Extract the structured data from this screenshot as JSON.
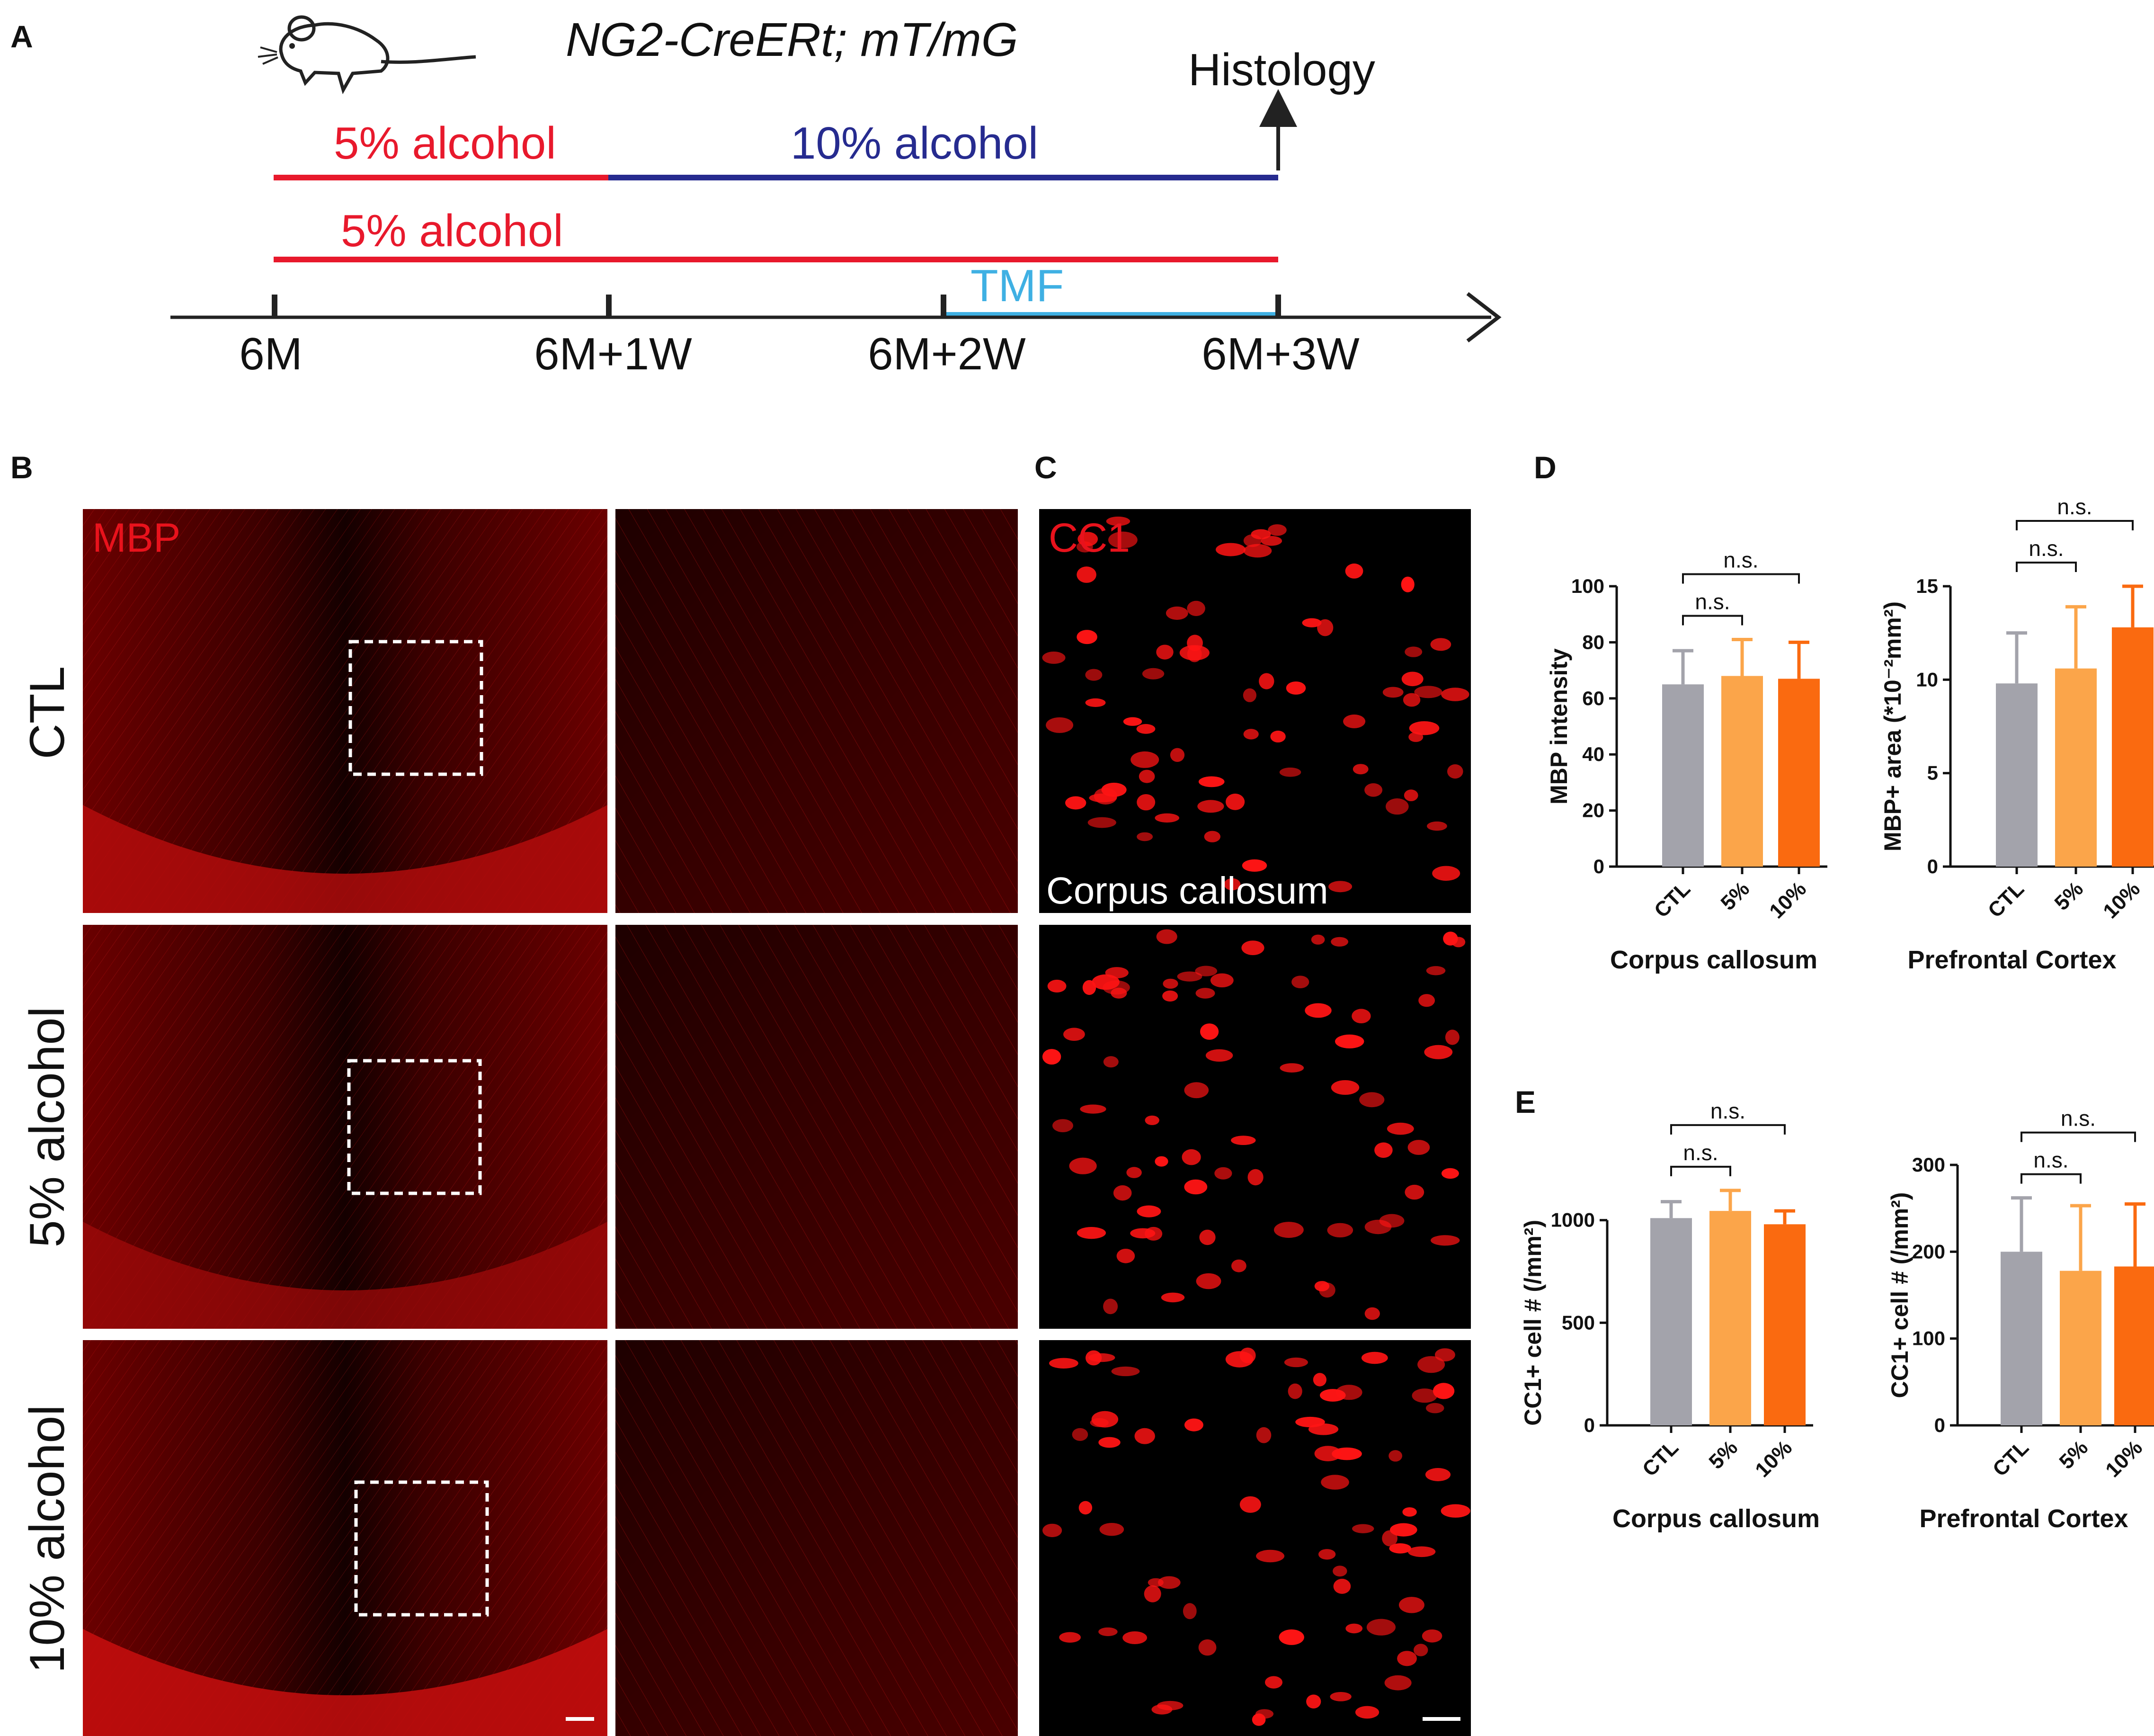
{
  "panel_letters": {
    "a": "A",
    "b": "B",
    "c": "C",
    "d": "D",
    "e": "E"
  },
  "timeline": {
    "strain": "NG2-CreERt; mT/mG",
    "endpoint": "Histology",
    "rows": [
      {
        "segments": [
          {
            "label": "5% alcohol",
            "color": "#e8192c"
          },
          {
            "label": "10% alcohol",
            "color": "#262b8f"
          }
        ]
      },
      {
        "segments": [
          {
            "label": "5% alcohol",
            "color": "#e8192c"
          }
        ]
      }
    ],
    "tmf": {
      "label": "TMF",
      "color": "#3fb0e3"
    },
    "ticks": [
      "6M",
      "6M+1W",
      "6M+2W",
      "6M+3W"
    ]
  },
  "micrographs": {
    "stain_b": "MBP",
    "stain_c": "CC1",
    "region_c": "Corpus callosum",
    "conditions": [
      "CTL",
      "5% alcohol",
      "10% alcohol"
    ],
    "colors": {
      "stain_label": "#e8121c",
      "background": "#000000",
      "signal": "#ff1414"
    }
  },
  "colors": {
    "CTL": "#a3a3ab",
    "5%": "#fba54a",
    "10%": "#fa6a10"
  },
  "chart_data": [
    {
      "panel": "D",
      "type": "bar",
      "title": "Corpus callosum",
      "ylabel": "MBP intensity",
      "categories": [
        "CTL",
        "5%",
        "10%"
      ],
      "values": [
        65,
        68,
        67
      ],
      "errors": [
        12,
        13,
        13
      ],
      "ylim": [
        0,
        100
      ],
      "yticks": [
        0,
        20,
        40,
        60,
        80,
        100
      ],
      "significance": [
        {
          "from": 0,
          "to": 1,
          "label": "n.s."
        },
        {
          "from": 0,
          "to": 2,
          "label": "n.s."
        }
      ]
    },
    {
      "panel": "D",
      "type": "bar",
      "title": "Prefrontal Cortex",
      "ylabel": "MBP+ area (*10⁻²mm²)",
      "categories": [
        "CTL",
        "5%",
        "10%"
      ],
      "values": [
        9.8,
        10.6,
        12.8
      ],
      "errors": [
        2.7,
        3.3,
        2.2
      ],
      "ylim": [
        0,
        15
      ],
      "yticks": [
        0,
        5,
        10,
        15
      ],
      "significance": [
        {
          "from": 0,
          "to": 1,
          "label": "n.s."
        },
        {
          "from": 0,
          "to": 2,
          "label": "n.s."
        }
      ]
    },
    {
      "panel": "E",
      "type": "bar",
      "title": "Corpus callosum",
      "ylabel": "CC1+ cell # (/mm²)",
      "categories": [
        "CTL",
        "5%",
        "10%"
      ],
      "values": [
        1010,
        1045,
        980
      ],
      "errors": [
        80,
        100,
        65
      ],
      "ylim": [
        0,
        1200
      ],
      "yticks": [
        0,
        500,
        1000
      ],
      "significance": [
        {
          "from": 0,
          "to": 1,
          "label": "n.s."
        },
        {
          "from": 0,
          "to": 2,
          "label": "n.s."
        }
      ]
    },
    {
      "panel": "E",
      "type": "bar",
      "title": "Prefrontal Cortex",
      "ylabel": "CC1+ cell # (/mm²)",
      "categories": [
        "CTL",
        "5%",
        "10%"
      ],
      "values": [
        200,
        178,
        183
      ],
      "errors": [
        62,
        75,
        72
      ],
      "ylim": [
        0,
        300
      ],
      "yticks": [
        0,
        100,
        200,
        300
      ],
      "significance": [
        {
          "from": 0,
          "to": 1,
          "label": "n.s."
        },
        {
          "from": 0,
          "to": 2,
          "label": "n.s."
        }
      ]
    }
  ]
}
